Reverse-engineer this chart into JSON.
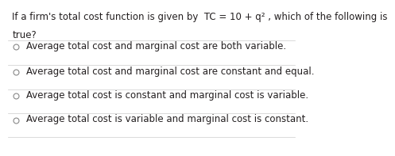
{
  "question_line1": "If a firm's total cost function is given by  TC = 10 + q² , which of the following is",
  "question_line2": "true?",
  "options": [
    "Average total cost and marginal cost are both variable.",
    "Average total cost and marginal cost are constant and equal.",
    "Average total cost is constant and marginal cost is variable.",
    "Average total cost is variable and marginal cost is constant."
  ],
  "bg_color": "#ffffff",
  "text_color": "#231f20",
  "font_size": 8.5,
  "question_font_size": 8.5,
  "divider_color": "#cccccc"
}
